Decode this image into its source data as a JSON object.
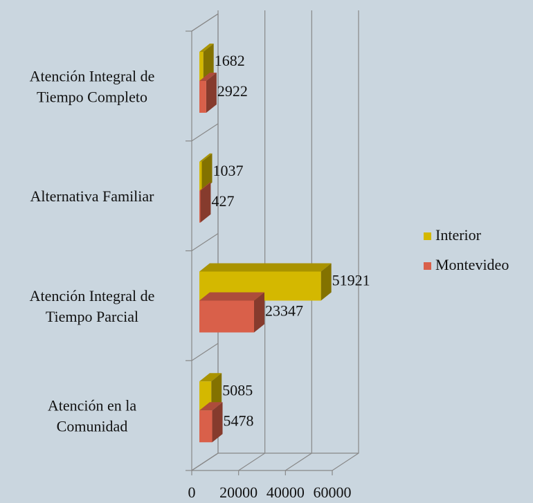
{
  "chart_data": {
    "type": "bar3d_horizontal",
    "categories": [
      [
        "Atención Integral de",
        "Tiempo Completo"
      ],
      [
        "Alternativa Familiar"
      ],
      [
        "Atención Integral de",
        "Tiempo Parcial"
      ],
      [
        "Atención en la",
        "Comunidad"
      ]
    ],
    "series": [
      {
        "name": "Interior",
        "color": "#d4b800",
        "values": [
          1682,
          1037,
          51921,
          5085
        ]
      },
      {
        "name": "Montevideo",
        "color": "#d9604a",
        "values": [
          2922,
          427,
          23347,
          5478
        ]
      }
    ],
    "xlim": [
      0,
      60000
    ],
    "xticks": [
      0,
      20000,
      40000,
      60000
    ],
    "grid": true,
    "legend": "right"
  }
}
